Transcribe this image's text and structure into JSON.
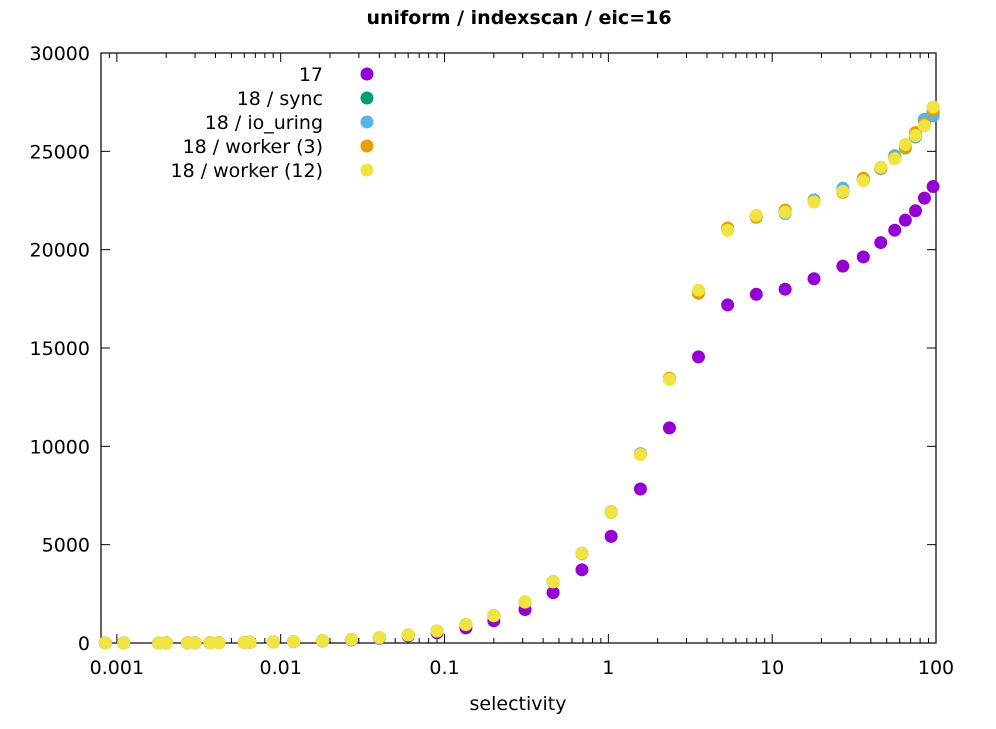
{
  "chart_data": {
    "type": "scatter",
    "title": "uniform / indexscan / eic=16",
    "xlabel": "selectivity",
    "ylabel": "",
    "xscale": "log",
    "xlim": [
      0.0008,
      100
    ],
    "ylim": [
      0,
      30000
    ],
    "grid": false,
    "legend_position": "top-left",
    "x_ticks": [
      {
        "value": 0.001,
        "label": "0.001"
      },
      {
        "value": 0.01,
        "label": "0.01"
      },
      {
        "value": 0.1,
        "label": "0.1"
      },
      {
        "value": 1,
        "label": "1"
      },
      {
        "value": 10,
        "label": "10"
      },
      {
        "value": 100,
        "label": "100"
      }
    ],
    "y_ticks": [
      {
        "value": 0,
        "label": "0"
      },
      {
        "value": 5000,
        "label": "5000"
      },
      {
        "value": 10000,
        "label": "10000"
      },
      {
        "value": 15000,
        "label": "15000"
      },
      {
        "value": 20000,
        "label": "20000"
      },
      {
        "value": 25000,
        "label": "25000"
      },
      {
        "value": 30000,
        "label": "30000"
      }
    ],
    "series": [
      {
        "name": "17",
        "color": "#9400d3",
        "points": [
          [
            0.00085,
            5
          ],
          [
            0.0011,
            5
          ],
          [
            0.0018,
            8
          ],
          [
            0.002,
            10
          ],
          [
            0.0027,
            12
          ],
          [
            0.003,
            15
          ],
          [
            0.0037,
            18
          ],
          [
            0.0042,
            20
          ],
          [
            0.006,
            30
          ],
          [
            0.0065,
            35
          ],
          [
            0.009,
            50
          ],
          [
            0.012,
            70
          ],
          [
            0.018,
            110
          ],
          [
            0.027,
            160
          ],
          [
            0.04,
            240
          ],
          [
            0.06,
            360
          ],
          [
            0.09,
            520
          ],
          [
            0.135,
            770
          ],
          [
            0.2,
            1130
          ],
          [
            0.31,
            1700
          ],
          [
            0.46,
            2560
          ],
          [
            0.69,
            3720
          ],
          [
            1.04,
            5420
          ],
          [
            1.57,
            7830
          ],
          [
            2.36,
            10940
          ],
          [
            3.55,
            14550
          ],
          [
            5.35,
            17190
          ],
          [
            8.0,
            17730
          ],
          [
            12.0,
            17990
          ],
          [
            18.0,
            18520
          ],
          [
            27.0,
            19160
          ],
          [
            36.0,
            19630
          ],
          [
            46.0,
            20360
          ],
          [
            56.0,
            20990
          ],
          [
            65.0,
            21500
          ],
          [
            75.0,
            21980
          ],
          [
            85.0,
            22620
          ],
          [
            96.0,
            23210
          ]
        ]
      },
      {
        "name": "18 / sync",
        "color": "#009e73",
        "points": [
          [
            0.00085,
            5
          ],
          [
            0.0011,
            5
          ],
          [
            0.0018,
            8
          ],
          [
            0.002,
            10
          ],
          [
            0.0027,
            12
          ],
          [
            0.003,
            15
          ],
          [
            0.0037,
            18
          ],
          [
            0.0042,
            20
          ],
          [
            0.006,
            30
          ],
          [
            0.0065,
            35
          ],
          [
            0.009,
            50
          ],
          [
            0.012,
            70
          ],
          [
            0.018,
            120
          ],
          [
            0.027,
            180
          ],
          [
            0.04,
            270
          ],
          [
            0.06,
            410
          ],
          [
            0.09,
            610
          ],
          [
            0.135,
            940
          ],
          [
            0.2,
            1390
          ],
          [
            0.31,
            2080
          ],
          [
            0.46,
            3120
          ],
          [
            0.69,
            4560
          ],
          [
            1.04,
            6670
          ],
          [
            1.57,
            9610
          ],
          [
            2.36,
            13430
          ],
          [
            3.55,
            17850
          ],
          [
            5.35,
            21050
          ],
          [
            8.0,
            21700
          ],
          [
            12.0,
            21950
          ],
          [
            18.0,
            22470
          ],
          [
            27.0,
            22980
          ],
          [
            36.0,
            23560
          ],
          [
            46.0,
            24150
          ],
          [
            56.0,
            24700
          ],
          [
            65.0,
            25300
          ],
          [
            75.0,
            25850
          ],
          [
            85.0,
            26500
          ],
          [
            96.0,
            27000
          ]
        ]
      },
      {
        "name": "18 / io_uring",
        "color": "#56b4e9",
        "points": [
          [
            0.00085,
            5
          ],
          [
            0.0011,
            5
          ],
          [
            0.0018,
            8
          ],
          [
            0.002,
            10
          ],
          [
            0.0027,
            12
          ],
          [
            0.003,
            15
          ],
          [
            0.0037,
            18
          ],
          [
            0.0042,
            20
          ],
          [
            0.006,
            30
          ],
          [
            0.0065,
            35
          ],
          [
            0.009,
            50
          ],
          [
            0.012,
            70
          ],
          [
            0.018,
            120
          ],
          [
            0.027,
            180
          ],
          [
            0.04,
            270
          ],
          [
            0.06,
            410
          ],
          [
            0.09,
            610
          ],
          [
            0.135,
            940
          ],
          [
            0.2,
            1400
          ],
          [
            0.31,
            2090
          ],
          [
            0.46,
            3130
          ],
          [
            0.69,
            4570
          ],
          [
            1.04,
            6680
          ],
          [
            1.57,
            9630
          ],
          [
            2.36,
            13440
          ],
          [
            3.55,
            17870
          ],
          [
            5.35,
            21060
          ],
          [
            8.0,
            21710
          ],
          [
            12.0,
            21830
          ],
          [
            18.0,
            22530
          ],
          [
            27.0,
            23120
          ],
          [
            36.0,
            23540
          ],
          [
            46.0,
            24110
          ],
          [
            56.0,
            24780
          ],
          [
            65.0,
            25170
          ],
          [
            75.0,
            25730
          ],
          [
            85.0,
            26630
          ],
          [
            96.0,
            26800
          ]
        ]
      },
      {
        "name": "18 / worker (3)",
        "color": "#e69f00",
        "points": [
          [
            0.00085,
            5
          ],
          [
            0.0011,
            5
          ],
          [
            0.0018,
            8
          ],
          [
            0.002,
            10
          ],
          [
            0.0027,
            12
          ],
          [
            0.003,
            15
          ],
          [
            0.0037,
            18
          ],
          [
            0.0042,
            20
          ],
          [
            0.006,
            30
          ],
          [
            0.0065,
            35
          ],
          [
            0.009,
            50
          ],
          [
            0.012,
            70
          ],
          [
            0.018,
            120
          ],
          [
            0.027,
            180
          ],
          [
            0.04,
            270
          ],
          [
            0.06,
            410
          ],
          [
            0.09,
            610
          ],
          [
            0.135,
            930
          ],
          [
            0.2,
            1380
          ],
          [
            0.31,
            2070
          ],
          [
            0.46,
            3100
          ],
          [
            0.69,
            4540
          ],
          [
            1.04,
            6650
          ],
          [
            1.57,
            9590
          ],
          [
            2.36,
            13460
          ],
          [
            3.55,
            17780
          ],
          [
            5.35,
            21100
          ],
          [
            8.0,
            21650
          ],
          [
            12.0,
            22020
          ],
          [
            18.0,
            22450
          ],
          [
            27.0,
            22910
          ],
          [
            36.0,
            23640
          ],
          [
            46.0,
            24150
          ],
          [
            56.0,
            24650
          ],
          [
            65.0,
            25200
          ],
          [
            75.0,
            25950
          ],
          [
            85.0,
            26400
          ],
          [
            96.0,
            27100
          ]
        ]
      },
      {
        "name": "18 / worker (12)",
        "color": "#f0e442",
        "points": [
          [
            0.00085,
            5
          ],
          [
            0.0011,
            5
          ],
          [
            0.0018,
            8
          ],
          [
            0.002,
            10
          ],
          [
            0.0027,
            12
          ],
          [
            0.003,
            15
          ],
          [
            0.0037,
            18
          ],
          [
            0.0042,
            20
          ],
          [
            0.006,
            30
          ],
          [
            0.0065,
            35
          ],
          [
            0.009,
            50
          ],
          [
            0.012,
            70
          ],
          [
            0.018,
            120
          ],
          [
            0.027,
            180
          ],
          [
            0.04,
            270
          ],
          [
            0.06,
            410
          ],
          [
            0.09,
            610
          ],
          [
            0.135,
            940
          ],
          [
            0.2,
            1390
          ],
          [
            0.31,
            2090
          ],
          [
            0.46,
            3120
          ],
          [
            0.69,
            4570
          ],
          [
            1.04,
            6670
          ],
          [
            1.57,
            9580
          ],
          [
            2.36,
            13400
          ],
          [
            3.55,
            17950
          ],
          [
            5.35,
            20980
          ],
          [
            8.0,
            21750
          ],
          [
            12.0,
            21900
          ],
          [
            18.0,
            22420
          ],
          [
            27.0,
            22960
          ],
          [
            36.0,
            23500
          ],
          [
            46.0,
            24200
          ],
          [
            56.0,
            24620
          ],
          [
            65.0,
            25350
          ],
          [
            75.0,
            25800
          ],
          [
            85.0,
            26300
          ],
          [
            96.0,
            27250
          ]
        ]
      }
    ]
  }
}
